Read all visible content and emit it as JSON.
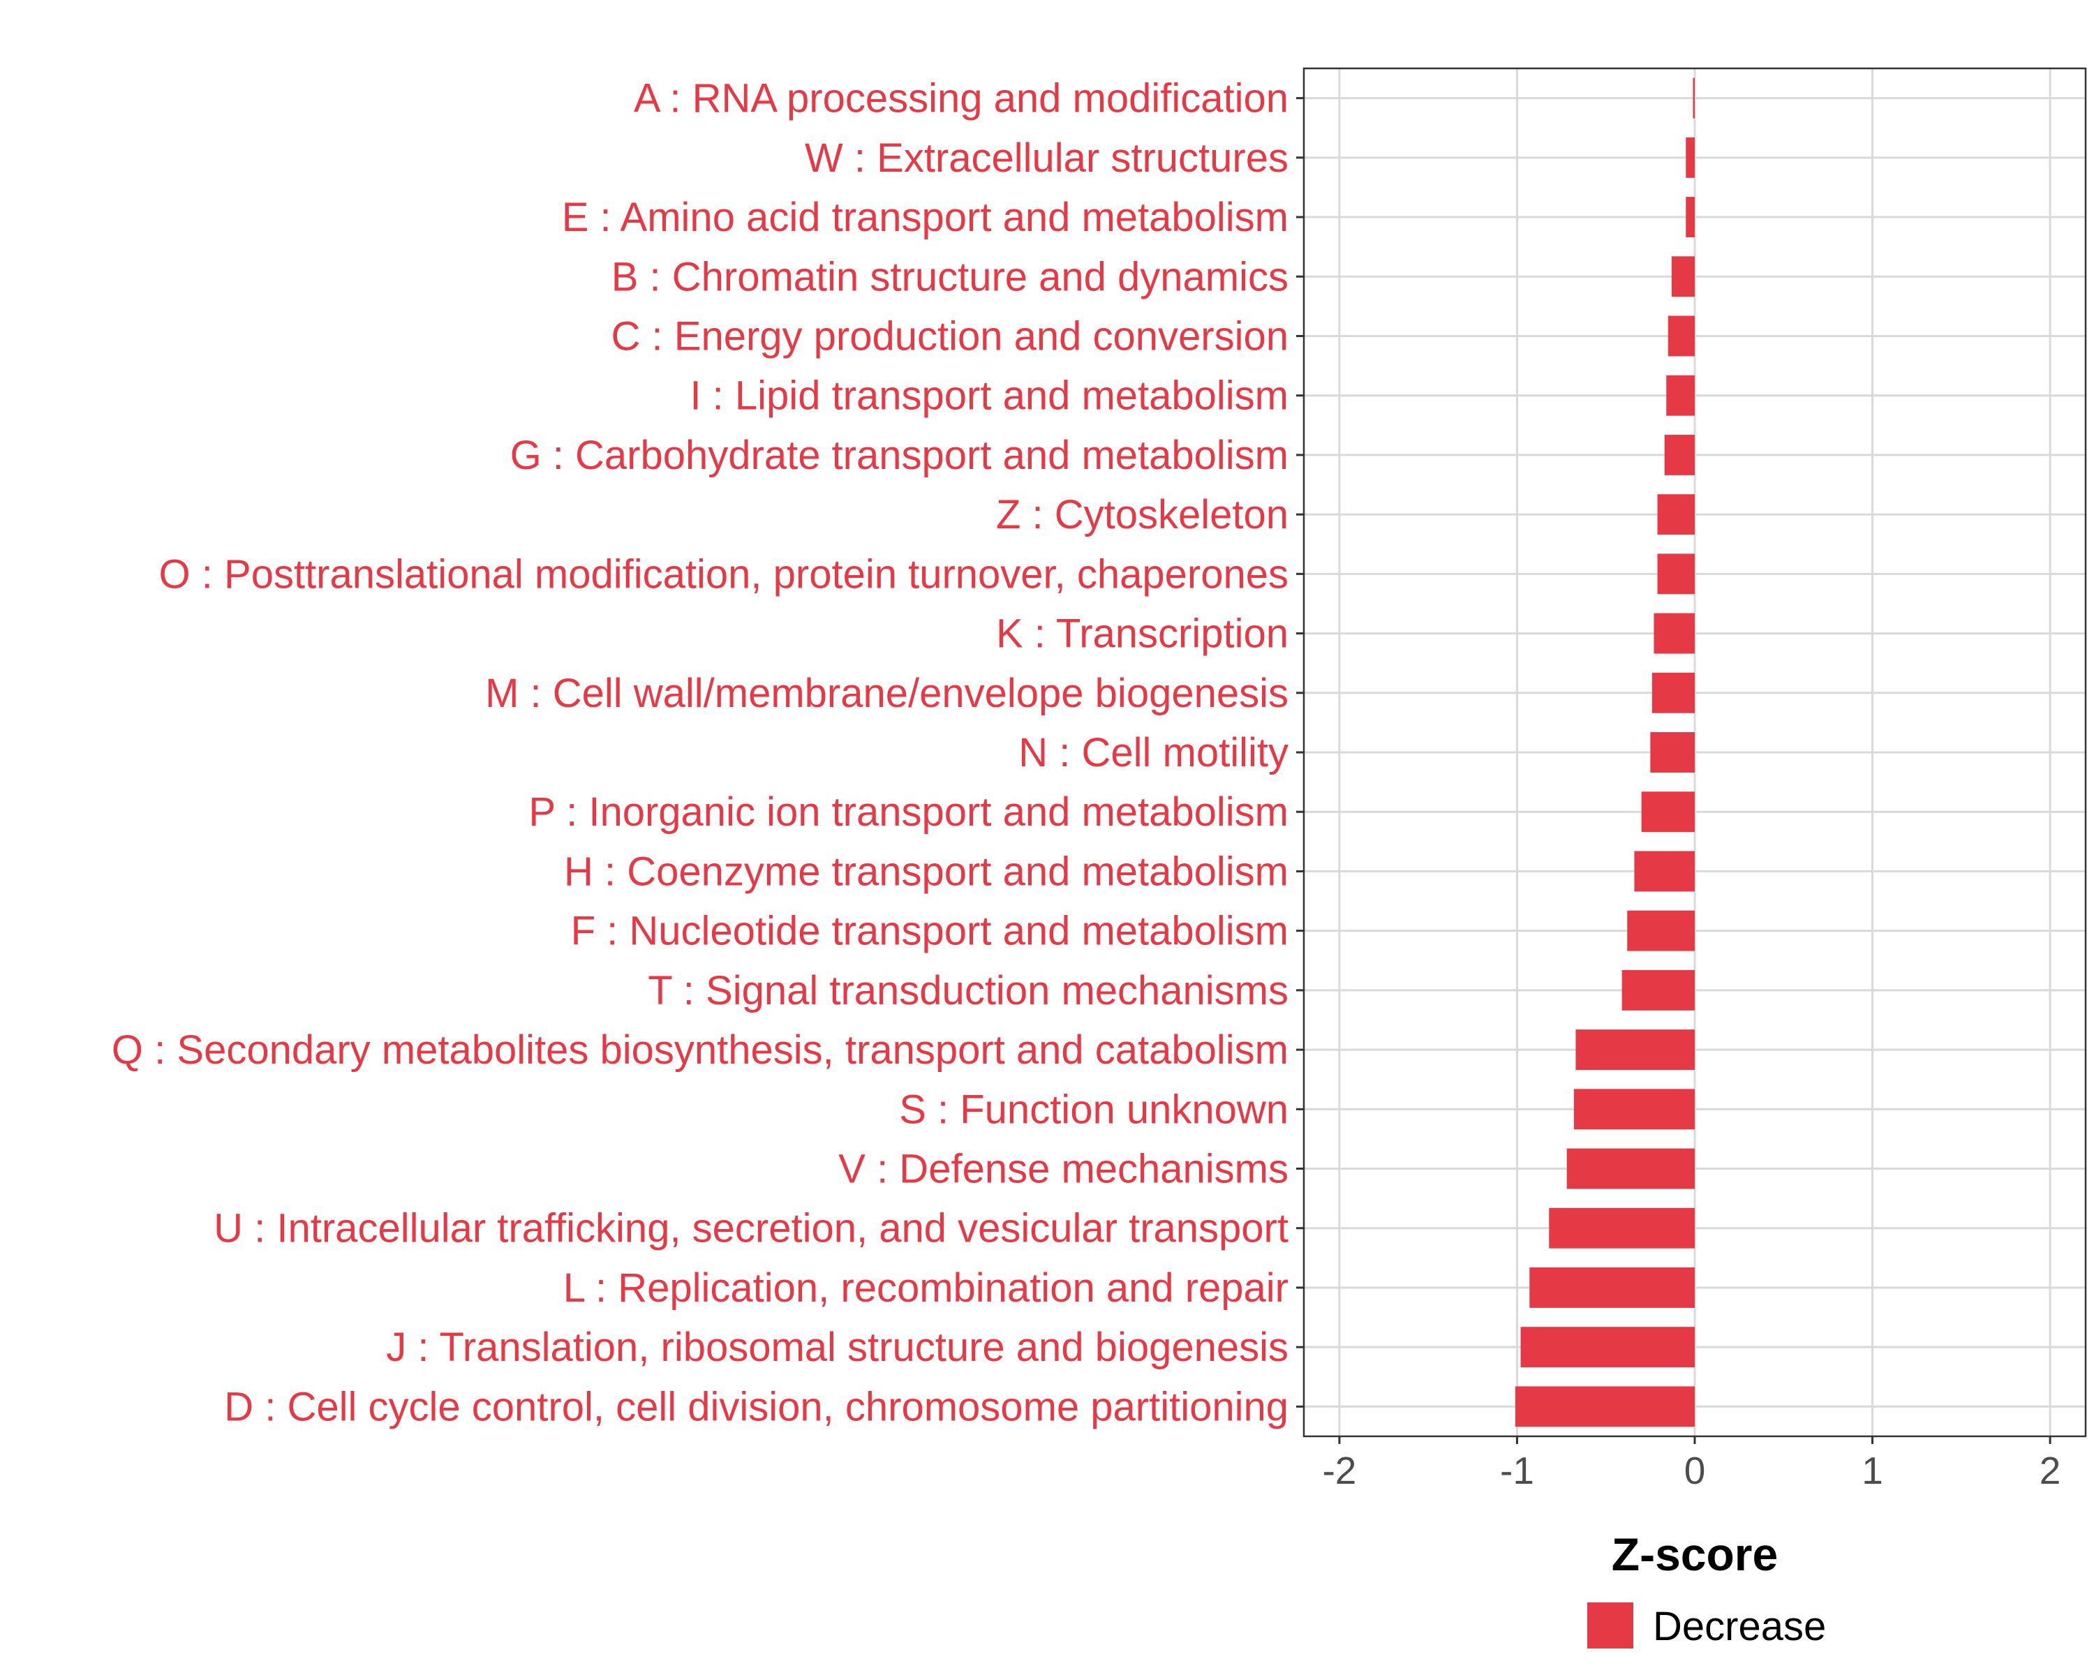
{
  "chart_data": {
    "type": "bar",
    "orientation": "horizontal",
    "categories": [
      "A : RNA processing and modification",
      "W : Extracellular structures",
      "E : Amino acid transport and metabolism",
      "B : Chromatin structure and dynamics",
      "C : Energy production and conversion",
      "I : Lipid transport and metabolism",
      "G : Carbohydrate transport and metabolism",
      "Z : Cytoskeleton",
      "O : Posttranslational modification, protein turnover, chaperones",
      "K : Transcription",
      "M : Cell wall/membrane/envelope biogenesis",
      "N : Cell motility",
      "P : Inorganic ion transport and metabolism",
      "H : Coenzyme transport and metabolism",
      "F : Nucleotide transport and metabolism",
      "T : Signal transduction mechanisms",
      "Q : Secondary metabolites biosynthesis, transport and catabolism",
      "S : Function unknown",
      "V : Defense mechanisms",
      "U : Intracellular trafficking, secretion, and vesicular transport",
      "L : Replication, recombination and repair",
      "J : Translation, ribosomal structure and biogenesis",
      "D : Cell cycle control, cell division, chromosome partitioning"
    ],
    "values": [
      -0.01,
      -0.05,
      -0.05,
      -0.13,
      -0.15,
      -0.16,
      -0.17,
      -0.21,
      -0.21,
      -0.23,
      -0.24,
      -0.25,
      -0.3,
      -0.34,
      -0.38,
      -0.41,
      -0.67,
      -0.68,
      -0.72,
      -0.82,
      -0.93,
      -0.98,
      -1.01
    ],
    "series": [
      {
        "name": "Decrease",
        "color": "#E63946"
      }
    ],
    "xlabel": "Z-score",
    "ylabel": "",
    "xlim": [
      -2.2,
      2.2
    ],
    "xticks": [
      -2,
      -1,
      0,
      1,
      2
    ],
    "xtick_labels": [
      "-2",
      "-1",
      "0",
      "1",
      "2"
    ],
    "grid": true,
    "legend_position": "bottom"
  }
}
